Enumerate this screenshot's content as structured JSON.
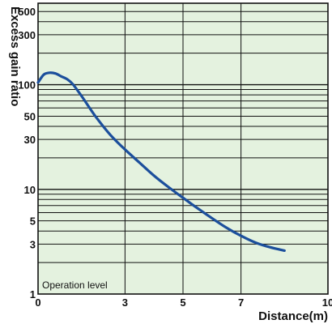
{
  "chart_data": {
    "type": "line",
    "xlabel": "Distance(m)",
    "ylabel": "Excess gain ratio",
    "xlim": [
      0,
      10
    ],
    "ylim": [
      1,
      600
    ],
    "y_scale": "log",
    "grid": true,
    "background_color": "#e4f2df",
    "line_color": "#1c4f9c",
    "x_ticks": [
      "0",
      "3",
      "5",
      "7",
      "10"
    ],
    "y_ticks": [
      "1",
      "3",
      "5",
      "10",
      "30",
      "50",
      "100",
      "300",
      "500"
    ],
    "annotation": "Operation level",
    "series": [
      {
        "x": [
          0,
          0.2,
          0.4,
          0.6,
          0.8,
          1.0,
          1.2,
          1.5,
          2.0,
          2.5,
          3.0,
          3.5,
          4.0,
          4.5,
          5.0,
          5.5,
          6.0,
          6.5,
          7.0,
          7.5,
          8.0,
          8.5
        ],
        "y": [
          105,
          125,
          130,
          128,
          120,
          113,
          101,
          78,
          49,
          33,
          24,
          18,
          13.5,
          10.5,
          8.3,
          6.6,
          5.3,
          4.3,
          3.6,
          3.1,
          2.8,
          2.6
        ]
      }
    ]
  }
}
